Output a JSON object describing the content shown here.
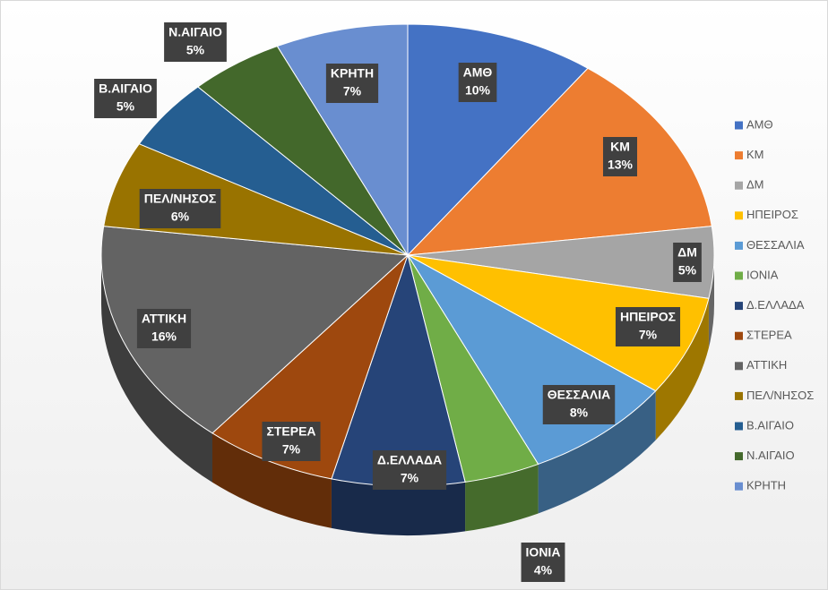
{
  "chart_data": {
    "type": "pie",
    "categories": [
      "ΑΜΘ",
      "ΚΜ",
      "ΔΜ",
      "ΗΠΕΙΡΟΣ",
      "ΘΕΣΣΑΛΙΑ",
      "ΙΟΝΙΑ",
      "Δ.ΕΛΛΑΔΑ",
      "ΣΤΕΡΕΑ",
      "ΑΤΤΙΚΗ",
      "ΠΕΛ/ΝΗΣΟΣ",
      "Β.ΑΙΓΑΙΟ",
      "Ν.ΑΙΓΑΙΟ",
      "ΚΡΗΤΗ"
    ],
    "values": [
      10,
      13,
      5,
      7,
      8,
      4,
      7,
      7,
      16,
      6,
      5,
      5,
      7
    ],
    "value_labels": [
      "10%",
      "13%",
      "5%",
      "7%",
      "8%",
      "4%",
      "7%",
      "7%",
      "16%",
      "6%",
      "5%",
      "5%",
      "7%"
    ],
    "colors": [
      "#4472c4",
      "#ed7d31",
      "#a5a5a5",
      "#ffc000",
      "#5b9bd5",
      "#70ad47",
      "#264478",
      "#9e480e",
      "#636363",
      "#997300",
      "#255e91",
      "#43682b",
      "#698ed0"
    ],
    "legend": "right"
  }
}
